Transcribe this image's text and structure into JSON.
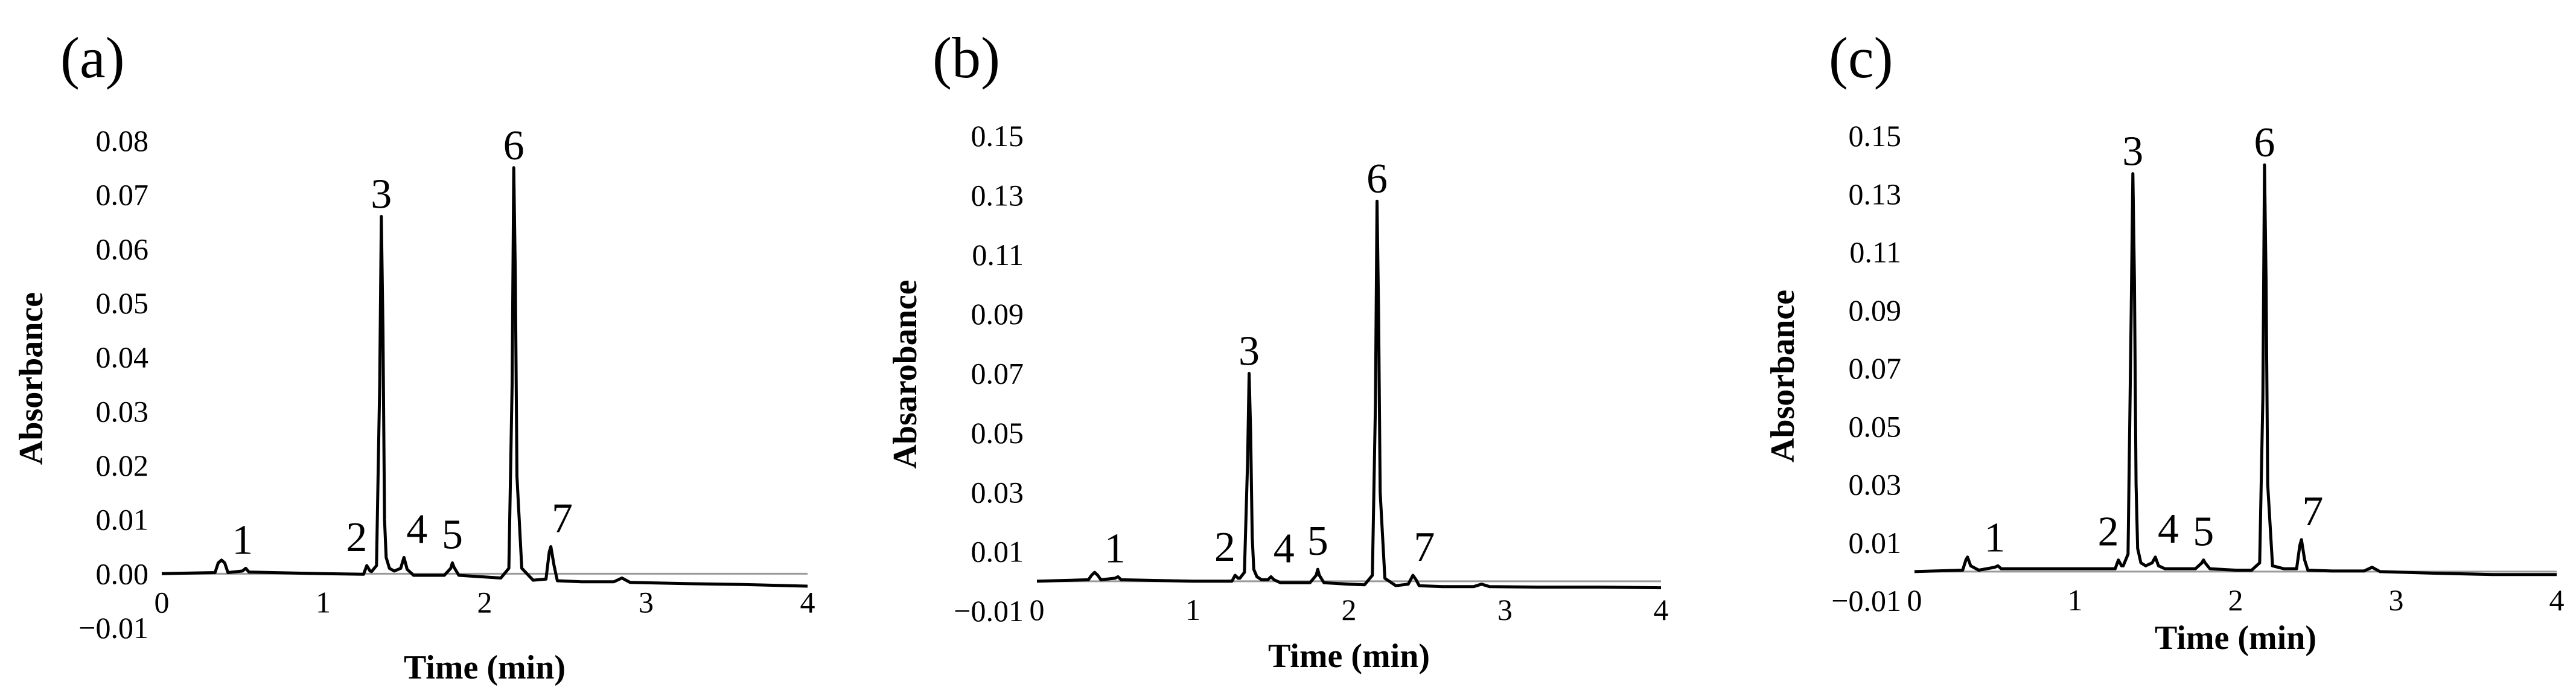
{
  "chart_data": [
    {
      "type": "line",
      "panel_label": "(a)",
      "xlabel": "Time (min)",
      "ylabel": "Absorbance",
      "xlim": [
        0,
        4
      ],
      "ylim": [
        -0.01,
        0.08
      ],
      "x_ticks": [
        "0",
        "1",
        "2",
        "3",
        "4"
      ],
      "y_ticks": [
        "−0.01",
        "0.00",
        "0.01",
        "0.02",
        "0.03",
        "0.04",
        "0.05",
        "0.06",
        "0.07",
        "0.08"
      ],
      "grid": false,
      "legend": "none",
      "series": [
        {
          "x": [
            0.0,
            0.33,
            0.35,
            0.37,
            0.39,
            0.41,
            0.5,
            0.52,
            0.54,
            1.0,
            1.25,
            1.27,
            1.29,
            1.3,
            1.33,
            1.35,
            1.36,
            1.37,
            1.38,
            1.39,
            1.41,
            1.44,
            1.48,
            1.5,
            1.52,
            1.56,
            1.75,
            1.79,
            1.8,
            1.81,
            1.84,
            2.0,
            2.1,
            2.15,
            2.17,
            2.18,
            2.19,
            2.2,
            2.23,
            2.3,
            2.38,
            2.4,
            2.41,
            2.43,
            2.45,
            2.6,
            2.8,
            2.85,
            2.9,
            3.2,
            3.6,
            4.0
          ],
          "y": [
            0.0,
            0.0002,
            0.002,
            0.0025,
            0.002,
            0.0002,
            0.0005,
            0.001,
            0.0003,
            0.0,
            -0.0001,
            0.0015,
            0.0005,
            0.0004,
            0.0015,
            0.035,
            0.066,
            0.045,
            0.01,
            0.003,
            0.001,
            0.0005,
            0.001,
            0.003,
            0.0008,
            -0.0003,
            -0.0003,
            0.001,
            0.002,
            0.0012,
            -0.0003,
            -0.0006,
            -0.0008,
            0.001,
            0.035,
            0.075,
            0.055,
            0.018,
            0.001,
            -0.0012,
            -0.001,
            0.004,
            0.005,
            0.0015,
            -0.0013,
            -0.0015,
            -0.0015,
            -0.0008,
            -0.0016,
            -0.0018,
            -0.002,
            -0.0023
          ]
        }
      ],
      "peak_labels": [
        {
          "label": "1",
          "x": 0.5,
          "y": 0.001
        },
        {
          "label": "2",
          "x": 1.28,
          "y": 0.0015
        },
        {
          "label": "3",
          "x": 1.36,
          "y": 0.066
        },
        {
          "label": "4",
          "x": 1.5,
          "y": 0.003
        },
        {
          "label": "5",
          "x": 1.8,
          "y": 0.002
        },
        {
          "label": "6",
          "x": 2.18,
          "y": 0.075
        },
        {
          "label": "7",
          "x": 2.4,
          "y": 0.005
        }
      ]
    },
    {
      "type": "line",
      "panel_label": "(b)",
      "xlabel": "Time (min)",
      "ylabel": "Absarobance",
      "xlim": [
        0,
        4
      ],
      "ylim": [
        -0.01,
        0.15
      ],
      "x_ticks": [
        "0",
        "1",
        "2",
        "3",
        "4"
      ],
      "y_ticks": [
        "−0.01",
        "0.01",
        "0.03",
        "0.05",
        "0.07",
        "0.09",
        "0.11",
        "0.13",
        "0.15"
      ],
      "grid": false,
      "legend": "none",
      "series": [
        {
          "x": [
            0.0,
            0.33,
            0.35,
            0.37,
            0.39,
            0.41,
            0.5,
            0.52,
            0.54,
            1.0,
            1.25,
            1.27,
            1.29,
            1.3,
            1.33,
            1.35,
            1.36,
            1.37,
            1.38,
            1.39,
            1.41,
            1.44,
            1.48,
            1.5,
            1.52,
            1.56,
            1.75,
            1.79,
            1.8,
            1.81,
            1.84,
            2.0,
            2.1,
            2.15,
            2.17,
            2.18,
            2.19,
            2.2,
            2.23,
            2.3,
            2.38,
            2.4,
            2.41,
            2.43,
            2.45,
            2.6,
            2.8,
            2.85,
            2.9,
            3.2,
            3.6,
            4.0
          ],
          "y": [
            0.0,
            0.0005,
            0.002,
            0.003,
            0.002,
            0.0005,
            0.001,
            0.0015,
            0.0005,
            0.0,
            0.0,
            0.002,
            0.001,
            0.001,
            0.003,
            0.04,
            0.07,
            0.05,
            0.015,
            0.004,
            0.0015,
            0.0005,
            0.0005,
            0.0015,
            0.0005,
            -0.0005,
            -0.0005,
            0.002,
            0.004,
            0.002,
            -0.0005,
            -0.001,
            -0.0012,
            0.002,
            0.06,
            0.128,
            0.09,
            0.03,
            0.001,
            -0.0015,
            -0.001,
            0.001,
            0.002,
            0.0005,
            -0.0015,
            -0.0018,
            -0.0018,
            -0.001,
            -0.0018,
            -0.002,
            -0.002,
            -0.0022
          ]
        }
      ],
      "peak_labels": [
        {
          "label": "1",
          "x": 0.5,
          "y": 0.0015
        },
        {
          "label": "2",
          "x": 1.28,
          "y": 0.002
        },
        {
          "label": "3",
          "x": 1.36,
          "y": 0.07
        },
        {
          "label": "4",
          "x": 1.5,
          "y": 0.0015
        },
        {
          "label": "5",
          "x": 1.8,
          "y": 0.004
        },
        {
          "label": "6",
          "x": 2.18,
          "y": 0.128
        },
        {
          "label": "7",
          "x": 2.4,
          "y": 0.002
        }
      ]
    },
    {
      "type": "line",
      "panel_label": "(c)",
      "xlabel": "Time (min)",
      "ylabel": "Absorbance",
      "xlim": [
        0,
        4
      ],
      "ylim": [
        -0.01,
        0.15
      ],
      "x_ticks": [
        "0",
        "1",
        "2",
        "3",
        "4"
      ],
      "y_ticks": [
        "−0.01",
        "0.01",
        "0.03",
        "0.05",
        "0.07",
        "0.09",
        "0.11",
        "0.13",
        "0.15"
      ],
      "grid": false,
      "legend": "none",
      "series": [
        {
          "x": [
            0.0,
            0.3,
            0.32,
            0.33,
            0.35,
            0.4,
            0.5,
            0.52,
            0.54,
            1.0,
            1.25,
            1.27,
            1.29,
            1.3,
            1.33,
            1.35,
            1.36,
            1.37,
            1.38,
            1.39,
            1.41,
            1.44,
            1.48,
            1.5,
            1.52,
            1.56,
            1.75,
            1.79,
            1.8,
            1.81,
            1.84,
            2.0,
            2.1,
            2.15,
            2.17,
            2.18,
            2.19,
            2.2,
            2.23,
            2.3,
            2.38,
            2.4,
            2.41,
            2.43,
            2.45,
            2.6,
            2.8,
            2.85,
            2.9,
            3.2,
            3.6,
            4.0
          ],
          "y": [
            0.0,
            0.0005,
            0.004,
            0.005,
            0.002,
            0.0005,
            0.0015,
            0.002,
            0.001,
            0.001,
            0.001,
            0.004,
            0.002,
            0.002,
            0.006,
            0.09,
            0.137,
            0.1,
            0.03,
            0.008,
            0.003,
            0.002,
            0.003,
            0.005,
            0.002,
            0.001,
            0.001,
            0.003,
            0.004,
            0.003,
            0.001,
            0.0005,
            0.0005,
            0.003,
            0.06,
            0.14,
            0.1,
            0.03,
            0.002,
            0.001,
            0.001,
            0.009,
            0.011,
            0.004,
            0.0005,
            0.0002,
            0.0002,
            0.0015,
            0.0,
            -0.0005,
            -0.001,
            -0.001
          ]
        }
      ],
      "peak_labels": [
        {
          "label": "1",
          "x": 0.5,
          "y": 0.002
        },
        {
          "label": "2",
          "x": 1.28,
          "y": 0.004
        },
        {
          "label": "3",
          "x": 1.36,
          "y": 0.137
        },
        {
          "label": "4",
          "x": 1.5,
          "y": 0.005
        },
        {
          "label": "5",
          "x": 1.8,
          "y": 0.004
        },
        {
          "label": "6",
          "x": 2.18,
          "y": 0.14
        },
        {
          "label": "7",
          "x": 2.4,
          "y": 0.011
        }
      ]
    }
  ]
}
